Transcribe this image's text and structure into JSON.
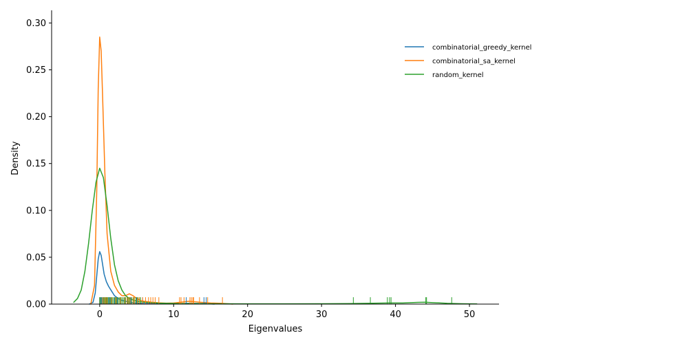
{
  "chart_data": {
    "type": "line",
    "title": "",
    "xlabel": "Eigenvalues",
    "ylabel": "Density",
    "xlim": [
      -6.5,
      54
    ],
    "ylim": [
      0,
      0.3135
    ],
    "xticks": [
      0,
      10,
      20,
      30,
      40,
      50
    ],
    "xtick_labels": [
      "0",
      "10",
      "20",
      "30",
      "40",
      "50"
    ],
    "yticks": [
      0.0,
      0.05,
      0.1,
      0.15,
      0.2,
      0.25,
      0.3
    ],
    "ytick_labels": [
      "0.00",
      "0.05",
      "0.10",
      "0.15",
      "0.20",
      "0.25",
      "0.30"
    ],
    "grid": false,
    "legend_position": "upper-right",
    "series": [
      {
        "name": "combinatorial_greedy_kernel",
        "color": "#1f77b4",
        "x": [
          -1.4,
          -0.9,
          -0.6,
          -0.4,
          -0.2,
          0.0,
          0.2,
          0.4,
          0.6,
          0.9,
          1.2,
          1.6,
          2.0,
          2.5,
          3.0,
          4.0,
          5.0,
          6.0,
          8.0,
          10.0,
          12.0,
          14.0,
          15.5
        ],
        "y": [
          0.0,
          0.002,
          0.012,
          0.03,
          0.048,
          0.056,
          0.052,
          0.042,
          0.032,
          0.024,
          0.019,
          0.014,
          0.009,
          0.006,
          0.004,
          0.002,
          0.001,
          0.0006,
          0.0003,
          0.0003,
          0.0008,
          0.0006,
          0.0
        ]
      },
      {
        "name": "combinatorial_sa_kernel",
        "color": "#ff7f0e",
        "x": [
          -1.2,
          -0.7,
          -0.4,
          -0.2,
          0.0,
          0.2,
          0.4,
          0.7,
          1.0,
          1.5,
          2.0,
          2.5,
          3.0,
          3.5,
          4.0,
          4.5,
          5.0,
          5.5,
          6.0,
          7.0,
          8.0,
          9.0,
          10.0,
          11.0,
          12.0,
          12.5,
          13.5,
          15.0,
          16.5,
          18.0
        ],
        "y": [
          0.0,
          0.02,
          0.12,
          0.23,
          0.285,
          0.27,
          0.22,
          0.14,
          0.075,
          0.035,
          0.02,
          0.013,
          0.009,
          0.009,
          0.011,
          0.009,
          0.006,
          0.004,
          0.003,
          0.002,
          0.0014,
          0.001,
          0.0012,
          0.002,
          0.003,
          0.0028,
          0.002,
          0.0012,
          0.0008,
          0.0
        ]
      },
      {
        "name": "random_kernel",
        "color": "#2ca02c",
        "x": [
          -3.5,
          -3.0,
          -2.5,
          -2.0,
          -1.5,
          -1.0,
          -0.5,
          0.0,
          0.5,
          1.0,
          1.5,
          2.0,
          2.5,
          3.0,
          3.5,
          4.0,
          5.0,
          6.0,
          8.0,
          10.0,
          15.0,
          20.0,
          25.0,
          30.0,
          34.5,
          37.0,
          39.0,
          41.0,
          43.0,
          44.0,
          45.0,
          47.0,
          49.0,
          51.0
        ],
        "y": [
          0.002,
          0.006,
          0.015,
          0.035,
          0.065,
          0.1,
          0.13,
          0.145,
          0.135,
          0.105,
          0.07,
          0.042,
          0.025,
          0.015,
          0.009,
          0.006,
          0.003,
          0.002,
          0.001,
          0.0007,
          0.0004,
          0.0003,
          0.0003,
          0.0004,
          0.0006,
          0.0009,
          0.0012,
          0.0012,
          0.0018,
          0.002,
          0.0016,
          0.0008,
          0.0004,
          0.0002
        ]
      }
    ],
    "rugs": [
      {
        "name": "combinatorial_greedy_kernel",
        "color": "#1f77b4",
        "values": [
          0.0,
          0.1,
          0.2,
          0.3,
          0.5,
          0.6,
          0.8,
          1.0,
          1.2,
          1.4,
          1.7,
          2.0,
          2.4,
          2.8,
          3.3,
          3.7,
          4.2,
          5.0,
          5.8,
          11.7,
          14.1,
          14.4
        ]
      },
      {
        "name": "combinatorial_sa_kernel",
        "color": "#ff7f0e",
        "values": [
          0.0,
          0.2,
          0.4,
          0.6,
          0.8,
          1.0,
          1.3,
          1.6,
          1.9,
          2.2,
          2.5,
          2.8,
          3.1,
          3.4,
          3.7,
          3.9,
          4.1,
          4.3,
          4.5,
          4.7,
          4.9,
          5.1,
          5.4,
          5.8,
          6.2,
          6.6,
          6.9,
          7.2,
          7.5,
          8.0,
          10.8,
          11.0,
          11.4,
          12.2,
          12.4,
          12.6,
          12.7,
          13.5,
          14.6,
          16.6
        ]
      },
      {
        "name": "random_kernel",
        "color": "#2ca02c",
        "values": [
          0.0,
          0.2,
          0.5,
          0.7,
          0.9,
          1.1,
          1.3,
          1.5,
          1.7,
          1.9,
          2.1,
          2.3,
          2.5,
          2.7,
          2.9,
          3.1,
          3.3,
          3.5,
          3.8,
          4.0,
          4.3,
          4.6,
          4.9,
          5.2,
          5.5,
          34.3,
          36.6,
          38.9,
          39.2,
          39.4,
          44.1,
          44.2,
          47.6
        ]
      }
    ]
  }
}
